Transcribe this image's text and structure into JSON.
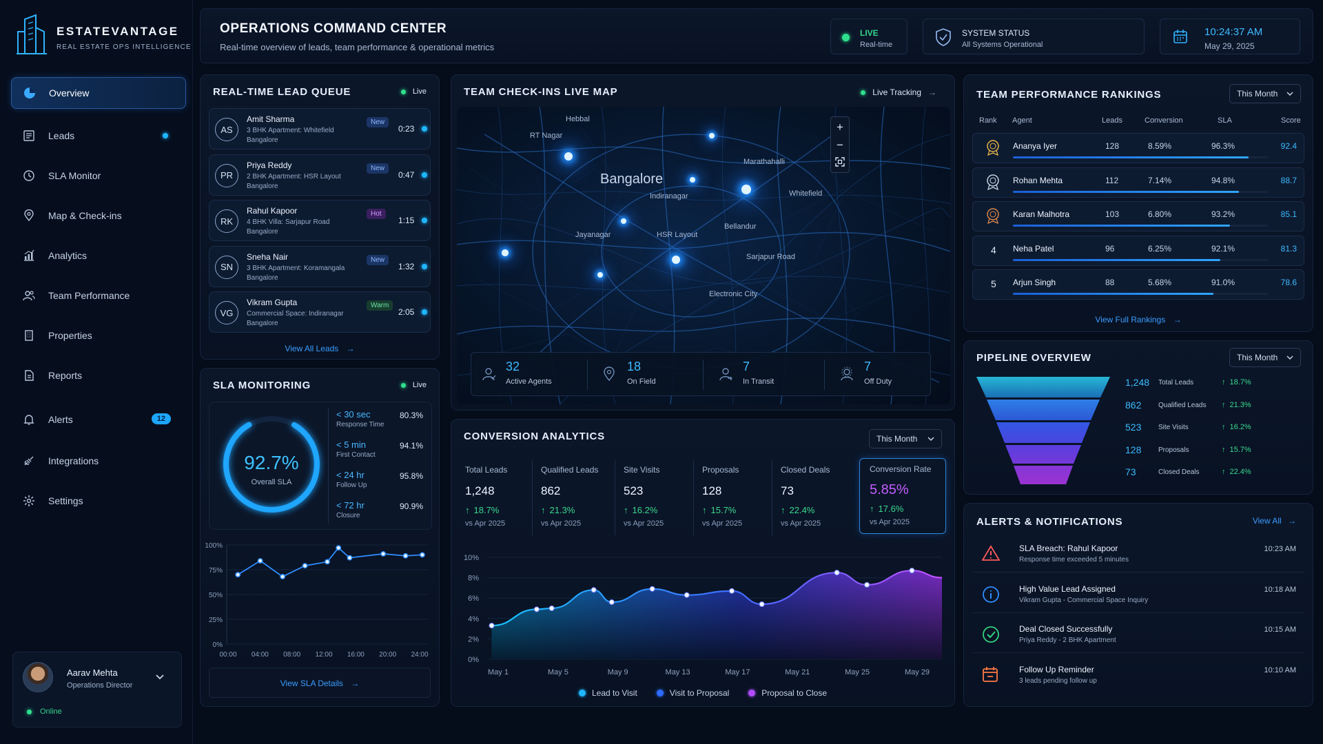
{
  "brand": {
    "name": "ESTATEVANTAGE",
    "tagline": "REAL ESTATE OPS INTELLIGENCE"
  },
  "header": {
    "title": "OPERATIONS COMMAND CENTER",
    "subtitle": "Real-time overview of leads, team performance & operational metrics",
    "live_label": "LIVE",
    "live_sub": "Real-time",
    "status_label": "SYSTEM STATUS",
    "status_value": "All Systems Operational",
    "time": "10:24:37 AM",
    "date": "May 29, 2025"
  },
  "sidebar": {
    "items": [
      {
        "label": "Overview",
        "icon": "pie-chart-icon"
      },
      {
        "label": "Leads",
        "icon": "leads-icon"
      },
      {
        "label": "SLA Monitor",
        "icon": "clock-icon"
      },
      {
        "label": "Map & Check-ins",
        "icon": "map-pin-icon"
      },
      {
        "label": "Analytics",
        "icon": "analytics-icon"
      },
      {
        "label": "Team Performance",
        "icon": "team-icon"
      },
      {
        "label": "Properties",
        "icon": "building-icon"
      },
      {
        "label": "Reports",
        "icon": "report-icon"
      },
      {
        "label": "Alerts",
        "icon": "bell-icon",
        "badge": "12"
      },
      {
        "label": "Integrations",
        "icon": "plug-icon"
      },
      {
        "label": "Settings",
        "icon": "gear-icon"
      }
    ],
    "user": {
      "name": "Aarav Mehta",
      "role": "Operations Director",
      "status": "Online"
    }
  },
  "lead_queue": {
    "title": "REAL-TIME LEAD QUEUE",
    "live": "Live",
    "leads": [
      {
        "initials": "AS",
        "name": "Amit Sharma",
        "desc1": "3 BHK Apartment: Whitefield",
        "desc2": "Bangalore",
        "tag": "New",
        "time": "0:23"
      },
      {
        "initials": "PR",
        "name": "Priya Reddy",
        "desc1": "2 BHK Apartment: HSR Layout",
        "desc2": "Bangalore",
        "tag": "New",
        "time": "0:47"
      },
      {
        "initials": "RK",
        "name": "Rahul Kapoor",
        "desc1": "4 BHK Villa: Sarjapur Road",
        "desc2": "Bangalore",
        "tag": "Hot",
        "time": "1:15"
      },
      {
        "initials": "SN",
        "name": "Sneha Nair",
        "desc1": "3 BHK Apartment: Koramangala",
        "desc2": "Bangalore",
        "tag": "New",
        "time": "1:32"
      },
      {
        "initials": "VG",
        "name": "Vikram Gupta",
        "desc1": "Commercial Space: Indiranagar",
        "desc2": "Bangalore",
        "tag": "Warm",
        "time": "2:05"
      }
    ],
    "view_all": "View All Leads"
  },
  "sla": {
    "title": "SLA MONITORING",
    "live": "Live",
    "overall_value": "92.7%",
    "overall_fraction": 0.927,
    "overall_label": "Overall SLA",
    "metrics": [
      {
        "target": "< 30 sec",
        "label": "Response Time",
        "value": "80.3%"
      },
      {
        "target": "< 5 min",
        "label": "First Contact",
        "value": "94.1%"
      },
      {
        "target": "< 24 hr",
        "label": "Follow Up",
        "value": "95.8%"
      },
      {
        "target": "< 72 hr",
        "label": "Closure",
        "value": "90.9%"
      }
    ],
    "view_details": "View SLA Details"
  },
  "map": {
    "title": "TEAM CHECK-INS LIVE MAP",
    "tracking": "Live Tracking",
    "city": "Bangalore",
    "areas": [
      "Hebbal",
      "RT Nagar",
      "Marathahalli",
      "Indiranagar",
      "Whitefield",
      "Jayanagar",
      "HSR Layout",
      "Bellandur",
      "Sarjapur Road",
      "Electronic City"
    ],
    "stats": [
      {
        "value": "32",
        "label": "Active Agents",
        "icon": "agent-icon"
      },
      {
        "value": "18",
        "label": "On Field",
        "icon": "map-pin-icon"
      },
      {
        "value": "7",
        "label": "In Transit",
        "icon": "transit-icon"
      },
      {
        "value": "7",
        "label": "Off Duty",
        "icon": "off-duty-icon"
      }
    ]
  },
  "rankings": {
    "title": "TEAM PERFORMANCE RANKINGS",
    "period": "This Month",
    "headers": [
      "Rank",
      "Agent",
      "Leads",
      "Conversion",
      "SLA",
      "Score"
    ],
    "rows": [
      {
        "rank": "1",
        "agent": "Ananya Iyer",
        "leads": "128",
        "conversion": "8.59%",
        "sla": "96.3%",
        "score": "92.4",
        "score_fraction": 0.924
      },
      {
        "rank": "2",
        "agent": "Rohan Mehta",
        "leads": "112",
        "conversion": "7.14%",
        "sla": "94.8%",
        "score": "88.7",
        "score_fraction": 0.887
      },
      {
        "rank": "3",
        "agent": "Karan Malhotra",
        "leads": "103",
        "conversion": "6.80%",
        "sla": "93.2%",
        "score": "85.1",
        "score_fraction": 0.851
      },
      {
        "rank": "4",
        "agent": "Neha Patel",
        "leads": "96",
        "conversion": "6.25%",
        "sla": "92.1%",
        "score": "81.3",
        "score_fraction": 0.813
      },
      {
        "rank": "5",
        "agent": "Arjun Singh",
        "leads": "88",
        "conversion": "5.68%",
        "sla": "91.0%",
        "score": "78.6",
        "score_fraction": 0.786
      }
    ],
    "view_full": "View Full Rankings"
  },
  "pipeline": {
    "title": "PIPELINE OVERVIEW",
    "period": "This Month",
    "stages": [
      {
        "value": "1,248",
        "label": "Total Leads",
        "change": "18.7%"
      },
      {
        "value": "862",
        "label": "Qualified Leads",
        "change": "21.3%"
      },
      {
        "value": "523",
        "label": "Site Visits",
        "change": "16.2%"
      },
      {
        "value": "128",
        "label": "Proposals",
        "change": "15.7%"
      },
      {
        "value": "73",
        "label": "Closed Deals",
        "change": "22.4%"
      }
    ]
  },
  "conversion": {
    "title": "CONVERSION ANALYTICS",
    "period": "This Month",
    "kpis": [
      {
        "label": "Total Leads",
        "value": "1,248",
        "change": "18.7%",
        "vs": "vs Apr 2025"
      },
      {
        "label": "Qualified Leads",
        "value": "862",
        "change": "21.3%",
        "vs": "vs Apr 2025"
      },
      {
        "label": "Site Visits",
        "value": "523",
        "change": "16.2%",
        "vs": "vs Apr 2025"
      },
      {
        "label": "Proposals",
        "value": "128",
        "change": "15.7%",
        "vs": "vs Apr 2025"
      },
      {
        "label": "Closed Deals",
        "value": "73",
        "change": "22.4%",
        "vs": "vs Apr 2025"
      },
      {
        "label": "Conversion Rate",
        "value": "5.85%",
        "change": "17.6%",
        "vs": "vs Apr 2025"
      }
    ]
  },
  "alerts": {
    "title": "ALERTS & NOTIFICATIONS",
    "view_all": "View All",
    "items": [
      {
        "title": "SLA Breach: Rahul Kapoor",
        "desc": "Response time exceeded 5 minutes",
        "time": "10:23 AM",
        "icon": "warning-icon",
        "color": "#ff5a5a"
      },
      {
        "title": "High Value Lead Assigned",
        "desc": "Vikram Gupta - Commercial Space Inquiry",
        "time": "10:18 AM",
        "icon": "info-icon",
        "color": "#2f8dff"
      },
      {
        "title": "Deal Closed Successfully",
        "desc": "Priya Reddy - 2 BHK Apartment",
        "time": "10:15 AM",
        "icon": "check-circle-icon",
        "color": "#34d47f"
      },
      {
        "title": "Follow Up Reminder",
        "desc": "3 leads pending follow up",
        "time": "10:10 AM",
        "icon": "calendar-icon",
        "color": "#ff7a45"
      }
    ]
  },
  "colors": {
    "accent": "#1fb6ff",
    "green": "#36d58a",
    "purple": "#b04cff",
    "bg": "#050c1a"
  },
  "chart_data": [
    {
      "type": "line",
      "title": "",
      "x": [
        "00:00",
        "04:00",
        "08:00",
        "12:00",
        "16:00",
        "20:00",
        "24:00"
      ],
      "ylabels": [
        "0%",
        "25%",
        "50%",
        "75%",
        "100%"
      ],
      "ylim": [
        0,
        100
      ],
      "points": [
        [
          1,
          70
        ],
        [
          3,
          84
        ],
        [
          5,
          68
        ],
        [
          7,
          79
        ],
        [
          9,
          83
        ],
        [
          10,
          97
        ],
        [
          11,
          87
        ],
        [
          14,
          91
        ],
        [
          16,
          89
        ],
        [
          17.5,
          90
        ]
      ],
      "xrange": [
        0,
        18
      ]
    },
    {
      "type": "area",
      "title": "",
      "x": [
        "May 1",
        "May 5",
        "May 9",
        "May 13",
        "May 17",
        "May 21",
        "May 25",
        "May 29"
      ],
      "ylabels": [
        "0%",
        "2%",
        "4%",
        "6%",
        "8%",
        "10%"
      ],
      "ylim": [
        0,
        10
      ],
      "series": [
        {
          "name": "Lead to Visit",
          "color": "#1fb6ff"
        },
        {
          "name": "Visit to Proposal",
          "color": "#2e6bff"
        },
        {
          "name": "Proposal to Close",
          "color": "#b04cff"
        }
      ],
      "points": [
        [
          1,
          3.3
        ],
        [
          4,
          4.9
        ],
        [
          5,
          5.0
        ],
        [
          7.8,
          6.8
        ],
        [
          9,
          5.6
        ],
        [
          11.7,
          6.9
        ],
        [
          14,
          6.3
        ],
        [
          17,
          6.7
        ],
        [
          19,
          5.4
        ],
        [
          24,
          8.5
        ],
        [
          26,
          7.3
        ],
        [
          29,
          8.7
        ],
        [
          31,
          8.0
        ]
      ],
      "xrange": [
        0.7,
        31
      ]
    }
  ]
}
